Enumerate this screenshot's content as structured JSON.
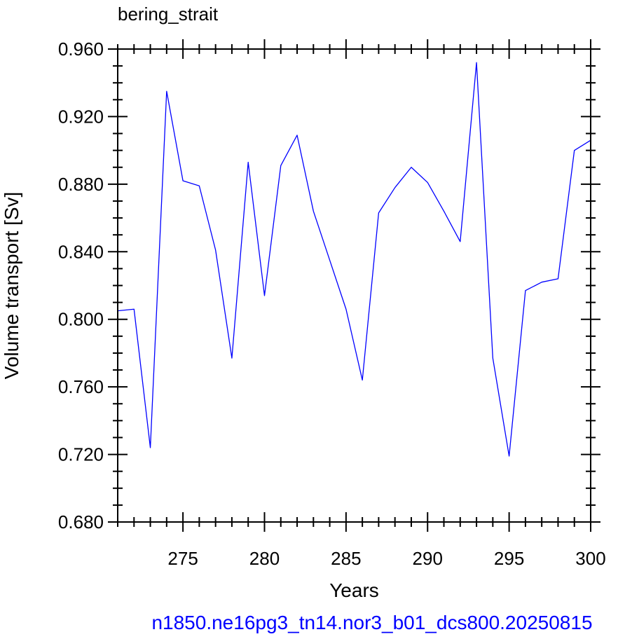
{
  "chart_data": {
    "type": "line",
    "title": "bering_strait",
    "xlabel": "Years",
    "ylabel": "Volume transport [Sv]",
    "caption": "n1850.ne16pg3_tn14.nor3_b01_dcs800.20250815",
    "xlim": [
      271,
      300
    ],
    "ylim": [
      0.68,
      0.96
    ],
    "x_ticks": [
      275,
      280,
      285,
      290,
      295,
      300
    ],
    "x_tick_labels": [
      "275",
      "280",
      "285",
      "290",
      "295",
      "300"
    ],
    "y_ticks": [
      0.68,
      0.72,
      0.76,
      0.8,
      0.84,
      0.88,
      0.92,
      0.96
    ],
    "y_tick_labels": [
      "0.680",
      "0.720",
      "0.760",
      "0.800",
      "0.840",
      "0.880",
      "0.920",
      "0.960"
    ],
    "grid": false,
    "series": [
      {
        "color": "#0000ff",
        "x": [
          271,
          272,
          273,
          274,
          275,
          276,
          277,
          278,
          279,
          280,
          281,
          282,
          283,
          284,
          285,
          286,
          287,
          288,
          289,
          290,
          291,
          292,
          293,
          294,
          295,
          296,
          297,
          298,
          299,
          300
        ],
        "y": [
          0.805,
          0.806,
          0.724,
          0.935,
          0.882,
          0.879,
          0.841,
          0.777,
          0.893,
          0.814,
          0.891,
          0.909,
          0.864,
          0.835,
          0.806,
          0.764,
          0.863,
          0.878,
          0.89,
          0.881,
          0.864,
          0.846,
          0.952,
          0.777,
          0.719,
          0.817,
          0.822,
          0.824,
          0.9,
          0.906
        ]
      }
    ],
    "colors": {
      "line": "#0000ff",
      "axes": "#000000",
      "caption": "#0000ff"
    }
  }
}
